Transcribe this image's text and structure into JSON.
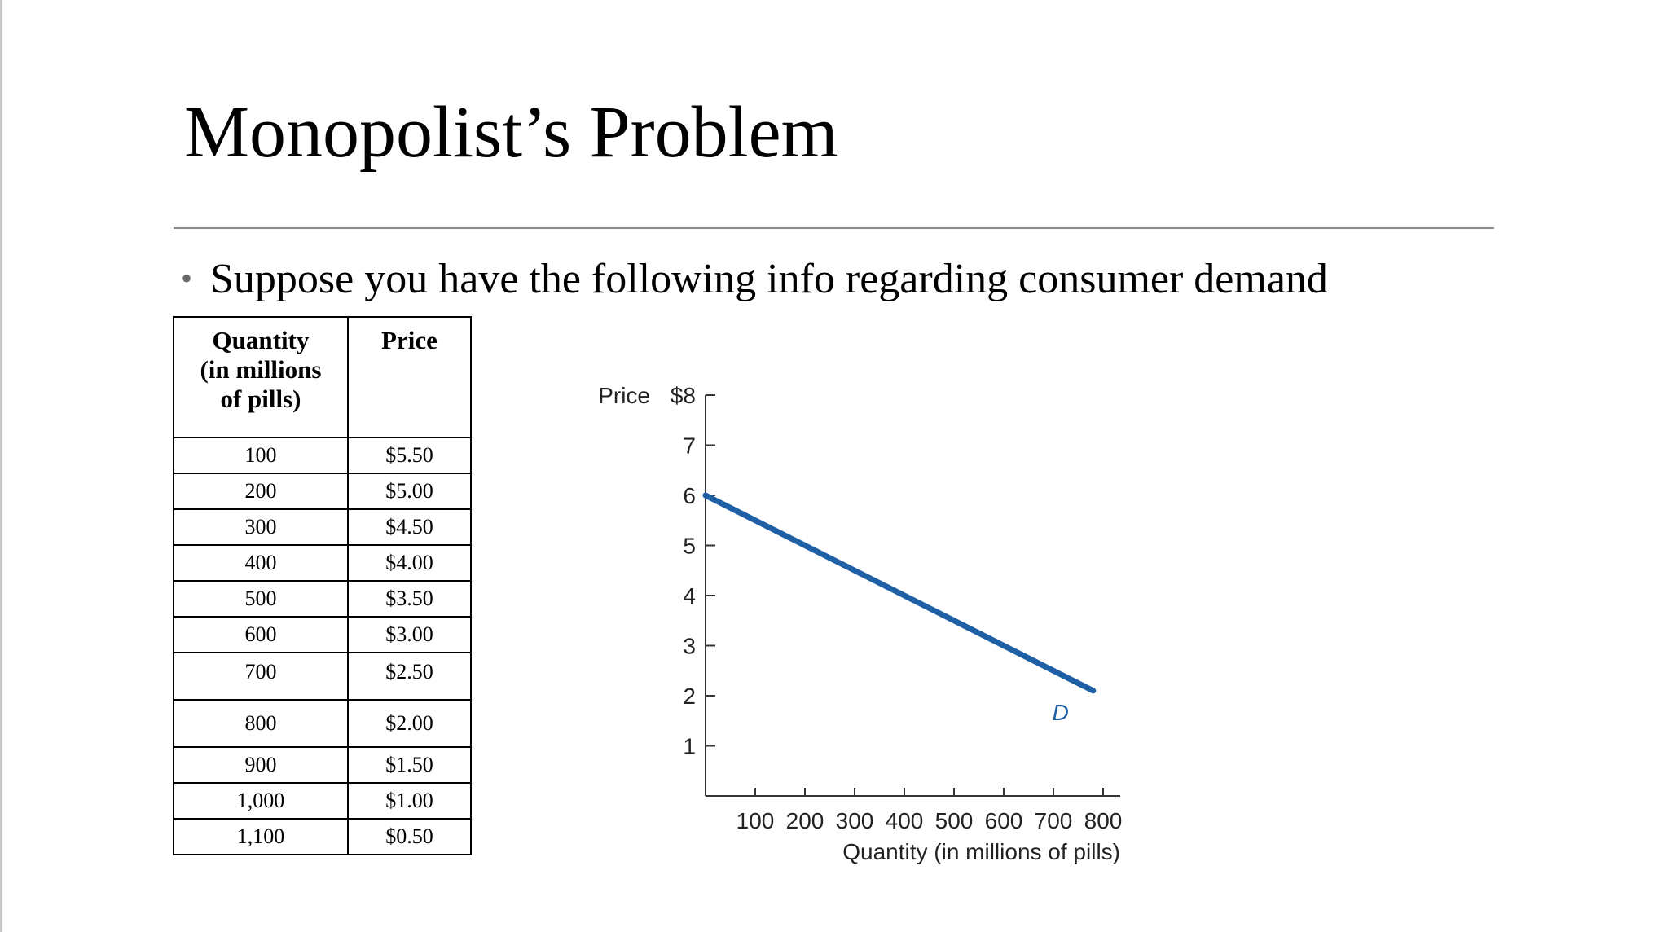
{
  "slide": {
    "title": "Monopolist’s Problem",
    "bullet": "Suppose you have the following info regarding consumer demand"
  },
  "table": {
    "headers": {
      "quantity": [
        "Quantity",
        "(in millions",
        "of pills)"
      ],
      "price": "Price"
    },
    "rows": [
      {
        "quantity": "100",
        "price": "$5.50"
      },
      {
        "quantity": "200",
        "price": "$5.00"
      },
      {
        "quantity": "300",
        "price": "$4.50"
      },
      {
        "quantity": "400",
        "price": "$4.00"
      },
      {
        "quantity": "500",
        "price": "$3.50"
      },
      {
        "quantity": "600",
        "price": "$3.00"
      },
      {
        "quantity": "700",
        "price": "$2.50"
      },
      {
        "quantity": "800",
        "price": "$2.00"
      },
      {
        "quantity": "900",
        "price": "$1.50"
      },
      {
        "quantity": "1,000",
        "price": "$1.00"
      },
      {
        "quantity": "1,100",
        "price": "$0.50"
      }
    ]
  },
  "chart_data": {
    "type": "line",
    "title": "",
    "xlabel": "Quantity (in millions of pills)",
    "ylabel": "Price",
    "xlim": [
      0,
      800
    ],
    "ylim": [
      0,
      8
    ],
    "x_ticks": [
      100,
      200,
      300,
      400,
      500,
      600,
      700,
      800
    ],
    "x_tick_labels": [
      "100",
      "200",
      "300",
      "400",
      "500",
      "600",
      "700",
      "800"
    ],
    "y_ticks": [
      1,
      2,
      3,
      4,
      5,
      6,
      7,
      8
    ],
    "y_tick_labels": [
      "1",
      "2",
      "3",
      "4",
      "5",
      "6",
      "7",
      "$8"
    ],
    "grid": false,
    "series": [
      {
        "name": "D",
        "color": "#1f5fa6",
        "points": [
          [
            0,
            6.0
          ],
          [
            780,
            2.1
          ]
        ]
      }
    ]
  }
}
